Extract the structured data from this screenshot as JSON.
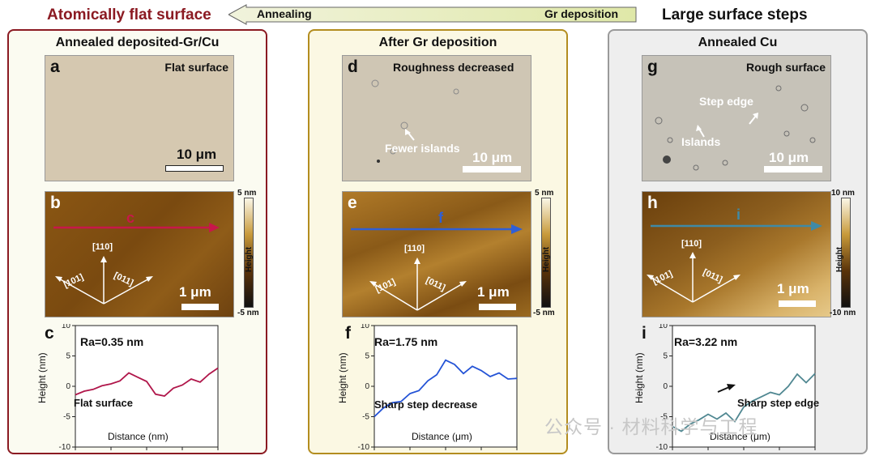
{
  "header": {
    "left_title": "Atomically flat surface",
    "right_title": "Large surface steps",
    "arrow_left_label": "Annealing",
    "arrow_right_label": "Gr deposition"
  },
  "panels": [
    {
      "title": "Annealed deposited-Gr/Cu",
      "optical": {
        "letter": "a",
        "note": "Flat surface",
        "scale": "10 μm",
        "callouts": []
      },
      "afm": {
        "letter": "b",
        "line_letter": "c",
        "dirs": [
          "[110]",
          "[101]",
          "[011]"
        ],
        "scale": "1 μm",
        "cbar_max": "5 nm",
        "cbar_min": "-5 nm",
        "cbar_title": "Height"
      },
      "profile": {
        "letter": "c",
        "ra": "Ra=0.35 nm",
        "note": "Flat surface",
        "xlabel": "Distance (nm)",
        "ylabel": "Height (nm)"
      }
    },
    {
      "title": "After Gr deposition",
      "optical": {
        "letter": "d",
        "note": "Roughness decreased",
        "scale": "10 μm",
        "callouts": [
          "Fewer islands"
        ]
      },
      "afm": {
        "letter": "e",
        "line_letter": "f",
        "dirs": [
          "[110]",
          "[101]",
          "[011]"
        ],
        "scale": "1 μm",
        "cbar_max": "5 nm",
        "cbar_min": "-5 nm",
        "cbar_title": "Height"
      },
      "profile": {
        "letter": "f",
        "ra": "Ra=1.75 nm",
        "note": "Sharp step decrease",
        "xlabel": "Distance (μm)",
        "ylabel": "Height (nm)"
      }
    },
    {
      "title": "Annealed Cu",
      "optical": {
        "letter": "g",
        "note": "Rough surface",
        "scale": "10 μm",
        "callouts": [
          "Step edge",
          "Islands"
        ]
      },
      "afm": {
        "letter": "h",
        "line_letter": "i",
        "dirs": [
          "[110]",
          "[101]",
          "[011]"
        ],
        "scale": "1 μm",
        "cbar_max": "10 nm",
        "cbar_min": "-10 nm",
        "cbar_title": "Height"
      },
      "profile": {
        "letter": "i",
        "ra": "Ra=3.22 nm",
        "note": "Sharp step edge",
        "xlabel": "Distance (μm)",
        "ylabel": "Height (nm)"
      }
    }
  ],
  "watermark": "公众号 · 材料科学与工程",
  "colors": {
    "left_title": "#8b1a22",
    "panel1_border": "#8b1a22",
    "panel2_border": "#b38d1f",
    "panel3_border": "#9a9a9a",
    "series1": "#b0164a",
    "series2": "#2453d6",
    "series3": "#4f8791",
    "afm_arrow1": "#c8174a",
    "afm_arrow2": "#2f5fd6",
    "afm_arrow3": "#3f8aa6"
  },
  "chart_data": [
    {
      "type": "line",
      "xlim": [
        0,
        4
      ],
      "ylim": [
        -10,
        10
      ],
      "xticks": [
        0,
        1,
        2,
        3,
        4
      ],
      "yticks": [
        -10,
        -5,
        0,
        5,
        10
      ],
      "x": [
        0,
        0.25,
        0.5,
        0.75,
        1.0,
        1.25,
        1.5,
        1.75,
        2.0,
        2.25,
        2.5,
        2.75,
        3.0,
        3.25,
        3.5,
        3.75,
        4.0
      ],
      "y": [
        -1.4,
        -0.8,
        -0.5,
        0.1,
        0.4,
        0.9,
        2.2,
        1.5,
        0.8,
        -1.3,
        -1.6,
        -0.3,
        0.2,
        1.2,
        0.7,
        2.0,
        3.0
      ]
    },
    {
      "type": "line",
      "xlim": [
        0,
        4
      ],
      "ylim": [
        -10,
        10
      ],
      "xticks": [
        0,
        1,
        2,
        3,
        4
      ],
      "yticks": [
        -10,
        -5,
        0,
        5,
        10
      ],
      "x": [
        0,
        0.25,
        0.5,
        0.75,
        1.0,
        1.25,
        1.5,
        1.75,
        2.0,
        2.25,
        2.5,
        2.75,
        3.0,
        3.25,
        3.5,
        3.75,
        4.0
      ],
      "y": [
        -5.0,
        -3.6,
        -2.7,
        -2.5,
        -1.2,
        -0.7,
        0.9,
        1.9,
        4.3,
        3.6,
        2.1,
        3.3,
        2.6,
        1.6,
        2.2,
        1.2,
        1.3
      ]
    },
    {
      "type": "line",
      "xlim": [
        0,
        4
      ],
      "ylim": [
        -10,
        10
      ],
      "xticks": [
        0,
        1,
        2,
        3,
        4
      ],
      "yticks": [
        -10,
        -5,
        0,
        5,
        10
      ],
      "x": [
        0,
        0.25,
        0.5,
        0.75,
        1.0,
        1.25,
        1.5,
        1.75,
        2.0,
        2.25,
        2.5,
        2.75,
        3.0,
        3.25,
        3.5,
        3.75,
        4.0
      ],
      "y": [
        -6.6,
        -7.4,
        -6.2,
        -5.5,
        -4.6,
        -5.4,
        -4.4,
        -5.8,
        -3.4,
        -2.4,
        -1.7,
        -1.0,
        -1.4,
        0.0,
        2.0,
        0.6,
        2.1
      ]
    }
  ]
}
